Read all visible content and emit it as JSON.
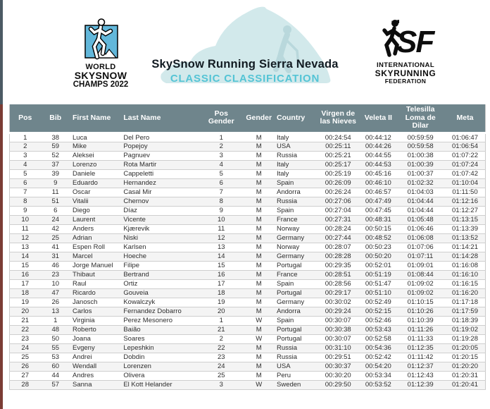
{
  "header": {
    "left_logo": {
      "lines": [
        "WORLD",
        "SKYSNOW",
        "CHAMPS 2022"
      ]
    },
    "title": "SkySnow Running Sierra Nevada",
    "subtitle": "CLASSIC CLASSIFICATION",
    "right_logo": {
      "monogram": "SF",
      "lines": [
        "INTERNATIONAL",
        "SKYRUNNING",
        "FEDERATION"
      ]
    }
  },
  "colors": {
    "accent_teal": "#54c4d5",
    "table_header_bg": "#6f858c",
    "logo_blue": "#62b7da",
    "blob_teal": "#d2e9eb",
    "strip_top": "#4c5a64",
    "strip_bottom": "#7b3c34"
  },
  "table": {
    "columns": [
      {
        "key": "pos",
        "label": "Pos",
        "align": "center"
      },
      {
        "key": "bib",
        "label": "Bib",
        "align": "center"
      },
      {
        "key": "first_name",
        "label": "First Name",
        "align": "left"
      },
      {
        "key": "last_name",
        "label": "Last Name",
        "align": "left"
      },
      {
        "key": "pos_gender",
        "label": "Pos\nGender",
        "align": "center"
      },
      {
        "key": "gender",
        "label": "Gender",
        "align": "center"
      },
      {
        "key": "country",
        "label": "Country",
        "align": "left"
      },
      {
        "key": "virgen_de_las_nieves",
        "label": "Virgen de\nlas Nieves",
        "align": "center"
      },
      {
        "key": "veleta_ii",
        "label": "Veleta II",
        "align": "center"
      },
      {
        "key": "telesilla_loma_de_dilar",
        "label": "Telesilla\nLoma de\nDilar",
        "align": "center"
      },
      {
        "key": "meta",
        "label": "Meta",
        "align": "center"
      }
    ],
    "rows": [
      [
        "1",
        "38",
        "Luca",
        "Del Pero",
        "1",
        "M",
        "Italy",
        "00:24:54",
        "00:44:12",
        "00:59:59",
        "01:06:47"
      ],
      [
        "2",
        "59",
        "Mike",
        "Popejoy",
        "2",
        "M",
        "USA",
        "00:25:11",
        "00:44:26",
        "00:59:58",
        "01:06:54"
      ],
      [
        "3",
        "52",
        "Aleksei",
        "Pagnuev",
        "3",
        "M",
        "Russia",
        "00:25:21",
        "00:44:55",
        "01:00:38",
        "01:07:22"
      ],
      [
        "4",
        "37",
        "Lorenzo",
        "Rota Martir",
        "4",
        "M",
        "Italy",
        "00:25:17",
        "00:44:53",
        "01:00:39",
        "01:07:24"
      ],
      [
        "5",
        "39",
        "Daniele",
        "Cappeletti",
        "5",
        "M",
        "Italy",
        "00:25:19",
        "00:45:16",
        "01:00:37",
        "01:07:42"
      ],
      [
        "6",
        "9",
        "Eduardo",
        "Hernandez",
        "6",
        "M",
        "Spain",
        "00:26:09",
        "00:46:10",
        "01:02:32",
        "01:10:04"
      ],
      [
        "7",
        "11",
        "Oscar",
        "Casal Mir",
        "7",
        "M",
        "Andorra",
        "00:26:24",
        "00:46:57",
        "01:04:03",
        "01:11:50"
      ],
      [
        "8",
        "51",
        "Vitalii",
        "Chernov",
        "8",
        "M",
        "Russia",
        "00:27:06",
        "00:47:49",
        "01:04:44",
        "01:12:16"
      ],
      [
        "9",
        "6",
        "Diego",
        "Díaz",
        "9",
        "M",
        "Spain",
        "00:27:04",
        "00:47:45",
        "01:04:44",
        "01:12:27"
      ],
      [
        "10",
        "24",
        "Laurent",
        "Vicente",
        "10",
        "M",
        "France",
        "00:27:31",
        "00:48:31",
        "01:05:48",
        "01:13:15"
      ],
      [
        "11",
        "42",
        "Anders",
        "Kjærevik",
        "11",
        "M",
        "Norway",
        "00:28:24",
        "00:50:15",
        "01:06:46",
        "01:13:39"
      ],
      [
        "12",
        "25",
        "Adrian",
        "Niski",
        "12",
        "M",
        "Germany",
        "00:27:44",
        "00:48:52",
        "01:06:08",
        "01:13:52"
      ],
      [
        "13",
        "41",
        "Espen Roll",
        "Karlsen",
        "13",
        "M",
        "Norway",
        "00:28:07",
        "00:50:23",
        "01:07:06",
        "01:14:21"
      ],
      [
        "14",
        "31",
        "Marcel",
        "Hoeche",
        "14",
        "M",
        "Germany",
        "00:28:28",
        "00:50:20",
        "01:07:11",
        "01:14:28"
      ],
      [
        "15",
        "46",
        "Jorge Manuel",
        "Filipe",
        "15",
        "M",
        "Portugal",
        "00:29:35",
        "00:52:01",
        "01:09:01",
        "01:16:08"
      ],
      [
        "16",
        "23",
        "Thibaut",
        "Bertrand",
        "16",
        "M",
        "France",
        "00:28:51",
        "00:51:19",
        "01:08:44",
        "01:16:10"
      ],
      [
        "17",
        "10",
        "Raul",
        "Ortiz",
        "17",
        "M",
        "Spain",
        "00:28:56",
        "00:51:47",
        "01:09:02",
        "01:16:15"
      ],
      [
        "18",
        "47",
        "Ricardo",
        "Gouveia",
        "18",
        "M",
        "Portugal",
        "00:29:17",
        "00:51:10",
        "01:09:02",
        "01:16:20"
      ],
      [
        "19",
        "26",
        "Janosch",
        "Kowalczyk",
        "19",
        "M",
        "Germany",
        "00:30:02",
        "00:52:49",
        "01:10:15",
        "01:17:18"
      ],
      [
        "20",
        "13",
        "Carlos",
        "Fernandez Dobarro",
        "20",
        "M",
        "Andorra",
        "00:29:24",
        "00:52:15",
        "01:10:26",
        "01:17:59"
      ],
      [
        "21",
        "1",
        "Virginia",
        "Perez Mesonero",
        "1",
        "W",
        "Spain",
        "00:30:07",
        "00:52:46",
        "01:10:39",
        "01:18:39"
      ],
      [
        "22",
        "48",
        "Roberto",
        "Baião",
        "21",
        "M",
        "Portugal",
        "00:30:38",
        "00:53:43",
        "01:11:26",
        "01:19:02"
      ],
      [
        "23",
        "50",
        "Joana",
        "Soares",
        "2",
        "W",
        "Portugal",
        "00:30:07",
        "00:52:58",
        "01:11:33",
        "01:19:28"
      ],
      [
        "24",
        "55",
        "Evgeny",
        "Lepeshkin",
        "22",
        "M",
        "Russia",
        "00:31:10",
        "00:54:36",
        "01:12:35",
        "01:20:05"
      ],
      [
        "25",
        "53",
        "Andrei",
        "Dobdin",
        "23",
        "M",
        "Russia",
        "00:29:51",
        "00:52:42",
        "01:11:42",
        "01:20:15"
      ],
      [
        "26",
        "60",
        "Wendall",
        "Lorenzen",
        "24",
        "M",
        "USA",
        "00:30:37",
        "00:54:20",
        "01:12:37",
        "01:20:20"
      ],
      [
        "27",
        "44",
        "Andres",
        "Olivera",
        "25",
        "M",
        "Peru",
        "00:30:20",
        "00:53:34",
        "01:12:43",
        "01:20:31"
      ],
      [
        "28",
        "57",
        "Sanna",
        "El Kott Helander",
        "3",
        "W",
        "Sweden",
        "00:29:50",
        "00:53:52",
        "01:12:39",
        "01:20:41"
      ]
    ]
  }
}
